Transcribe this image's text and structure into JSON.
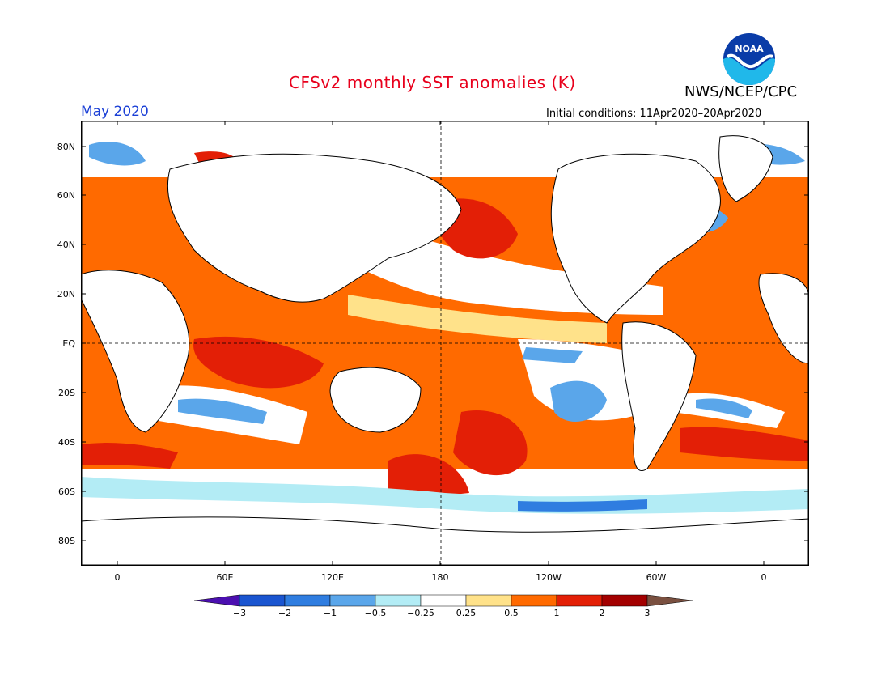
{
  "header": {
    "title": "CFSv2 monthly SST anomalies (K)",
    "agency": "NWS/NCEP/CPC",
    "month": "May 2020",
    "initial_conditions": "Initial conditions: 11Apr2020–20Apr2020",
    "logo_text": "NOAA"
  },
  "axes": {
    "lat_labels": [
      "80N",
      "60N",
      "40N",
      "20N",
      "EQ",
      "20S",
      "40S",
      "60S",
      "80S"
    ],
    "lon_labels": [
      "0",
      "60E",
      "120E",
      "180",
      "120W",
      "60W",
      "0"
    ]
  },
  "colorbar": {
    "tick_labels": [
      "−3",
      "−2",
      "−1",
      "−0.5",
      "−0.25",
      "0.25",
      "0.5",
      "1",
      "2",
      "3"
    ],
    "colors": [
      "#4b0fb0",
      "#1a55d0",
      "#2f7de0",
      "#5aa6ea",
      "#b3ecf5",
      "#ffffff",
      "#ffe28a",
      "#ff6a00",
      "#e31f06",
      "#a30000",
      "#7a5040"
    ]
  },
  "colors": {
    "title": "#e8001c",
    "month": "#1a3fd6",
    "land": "#ffffff",
    "warm": "#ff6a00",
    "hot": "#e31f06",
    "very_hot": "#a30000",
    "mild": "#ffe28a",
    "cool": "#5aa6ea",
    "cold": "#2f7de0",
    "neutral": "#ffffff"
  }
}
